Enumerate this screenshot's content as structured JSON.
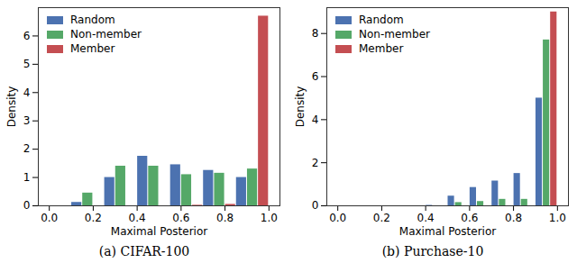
{
  "chart_data": [
    {
      "type": "histogram",
      "title": "(a) CIFAR-100",
      "x_label": "Maximal Posterior",
      "y_label": "Density",
      "bins": [
        0.1,
        0.25,
        0.4,
        0.55,
        0.7,
        0.85,
        1.0
      ],
      "series": [
        {
          "name": "Random",
          "color": "#4c72b0",
          "values": [
            0.12,
            1.0,
            1.75,
            1.45,
            1.25,
            1.0
          ]
        },
        {
          "name": "Non-member",
          "color": "#55a868",
          "values": [
            0.45,
            1.4,
            1.4,
            1.1,
            1.15,
            1.3
          ]
        },
        {
          "name": "Member",
          "color": "#c44e52",
          "values": [
            0,
            0,
            0,
            0.02,
            0.05,
            6.7
          ]
        }
      ],
      "xlim": [
        -0.05,
        1.05
      ],
      "xticks": [
        {
          "value": 0,
          "label": "0.0"
        },
        0.2,
        0.4,
        0.6,
        0.8,
        {
          "value": 1,
          "label": "1.0"
        }
      ],
      "ylim": [
        0,
        7
      ],
      "yticks": [
        0,
        1,
        2,
        3,
        4,
        5,
        6
      ],
      "legend": "upper left"
    },
    {
      "type": "histogram",
      "title": "(b) Purchase-10",
      "x_label": "Maximal Posterior",
      "y_label": "Density",
      "bins": [
        0.4,
        0.5,
        0.6,
        0.7,
        0.8,
        0.9,
        1.0
      ],
      "series": [
        {
          "name": "Random",
          "color": "#4c72b0",
          "values": [
            0.02,
            0.45,
            0.85,
            1.15,
            1.5,
            5.0
          ]
        },
        {
          "name": "Non-member",
          "color": "#55a868",
          "values": [
            0,
            0.15,
            0.2,
            0.3,
            0.3,
            7.7
          ]
        },
        {
          "name": "Member",
          "color": "#c44e52",
          "values": [
            0,
            0,
            0,
            0,
            0,
            9.0
          ]
        }
      ],
      "xlim": [
        -0.05,
        1.05
      ],
      "xticks": [
        {
          "value": 0,
          "label": "0.0"
        },
        0.2,
        0.4,
        0.6,
        0.8,
        {
          "value": 1,
          "label": "1.0"
        }
      ],
      "ylim": [
        0,
        9.2
      ],
      "yticks": [
        0,
        2,
        4,
        6,
        8
      ],
      "legend": "upper left"
    }
  ]
}
